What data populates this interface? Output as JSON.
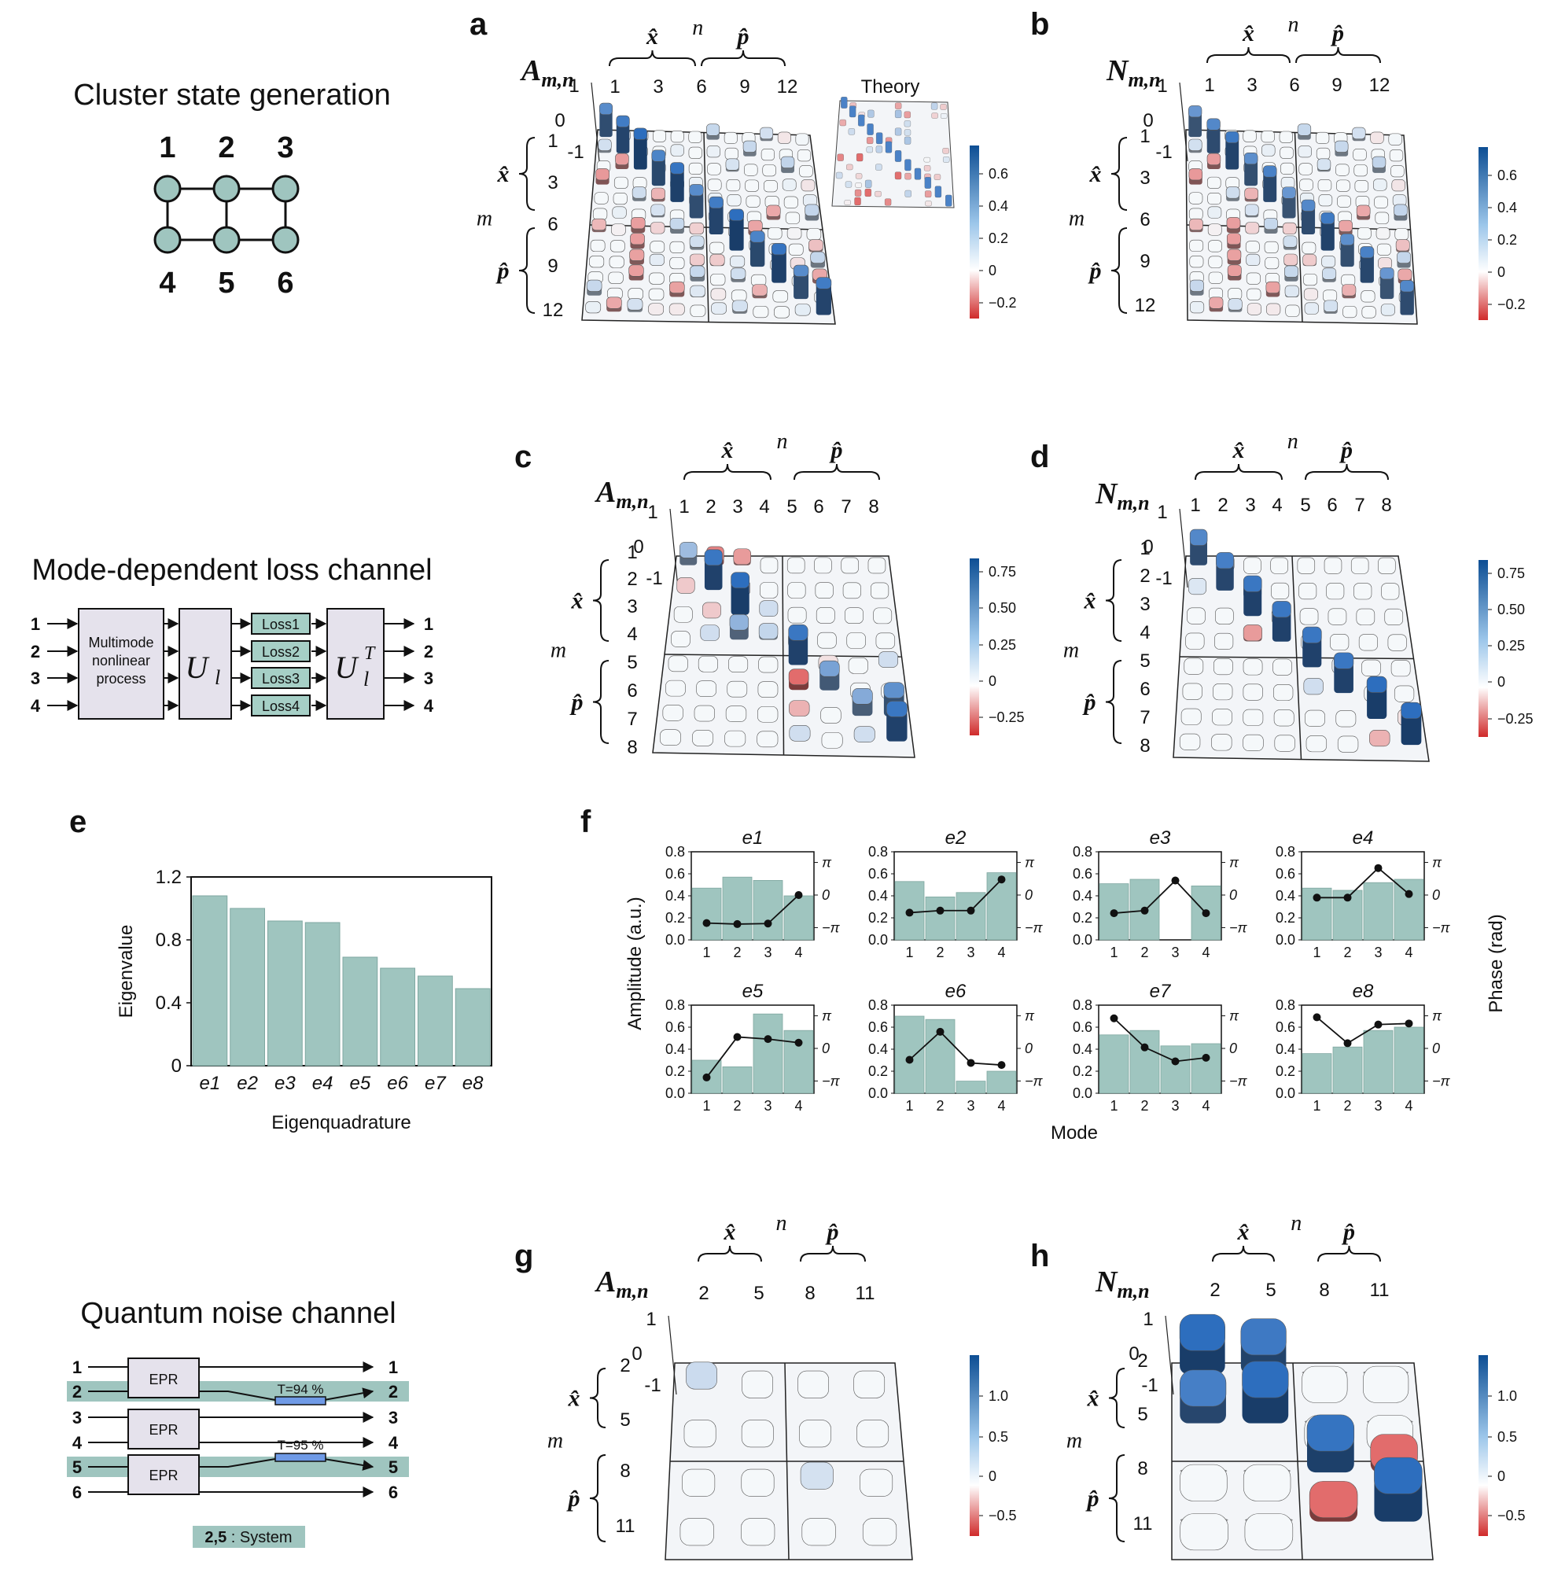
{
  "panel_labels": [
    "a",
    "b",
    "c",
    "d",
    "e",
    "f",
    "g",
    "h"
  ],
  "cluster": {
    "title": "Cluster state generation",
    "nodes": [
      "1",
      "2",
      "3",
      "4",
      "5",
      "6"
    ]
  },
  "loss": {
    "title": "Mode-dependent loss channel",
    "inputs": [
      "1",
      "2",
      "3",
      "4"
    ],
    "outputs": [
      "1",
      "2",
      "3",
      "4"
    ],
    "block1": [
      "Multimode",
      "nonlinear",
      "process"
    ],
    "ul": "U",
    "ul_sub": "l",
    "ult": "U",
    "ult_sub": "l",
    "ult_sup": "T",
    "boxes": [
      "Loss1",
      "Loss2",
      "Loss3",
      "Loss4"
    ]
  },
  "noise": {
    "title": "Quantum noise channel",
    "inputs": [
      "1",
      "2",
      "3",
      "4",
      "5",
      "6"
    ],
    "outputs": [
      "1",
      "2",
      "3",
      "4",
      "5",
      "6"
    ],
    "epr": [
      "EPR",
      "EPR",
      "EPR"
    ],
    "t1": "T=94 %",
    "t2": "T=95 %",
    "legend_bold": "2,5",
    "legend_rest": " : System"
  },
  "matrix_common": {
    "xhat": "x̂",
    "phat": "p̂",
    "n": "n",
    "m": "m",
    "a_sym": "A",
    "n_sym": "N",
    "subscript": "m,n",
    "z_ticks": [
      "1",
      "0",
      "-1"
    ],
    "theory": "Theory"
  },
  "mat_ab": {
    "col_ticks": [
      "1",
      "3",
      "6",
      "9",
      "12"
    ],
    "row_ticks": [
      "1",
      "3",
      "6",
      "9",
      "12"
    ],
    "cb_ticks": [
      "0.6",
      "0.4",
      "0.2",
      "0",
      "−0.2"
    ]
  },
  "mat_cd": {
    "col_ticks": [
      "1",
      "2",
      "3",
      "4",
      "5",
      "6",
      "7",
      "8"
    ],
    "row_ticks": [
      "1",
      "2",
      "3",
      "4",
      "5",
      "6",
      "7",
      "8"
    ],
    "cb_ticks": [
      "0.75",
      "0.50",
      "0.25",
      "0",
      "−0.25"
    ]
  },
  "mat_gh": {
    "col_ticks": [
      "2",
      "5",
      "8",
      "11"
    ],
    "row_ticks": [
      "2",
      "5",
      "8",
      "11"
    ],
    "cb_ticks": [
      "1.0",
      "0.5",
      "0",
      "−0.5"
    ]
  },
  "colors": {
    "bar": "#9fc5bf",
    "positive": "#1e5fa8",
    "negative": "#d43a3a",
    "system_band": "#9fc5bf",
    "loss_box": "#a6cfc6",
    "block_fill": "#e5e2ec",
    "node_fill": "#9fc5bf"
  },
  "chart_data": [
    {
      "type": "bar",
      "categories": [
        "e1",
        "e2",
        "e3",
        "e4",
        "e5",
        "e6",
        "e7",
        "e8"
      ],
      "values": [
        1.08,
        1.0,
        0.92,
        0.91,
        0.69,
        0.62,
        0.57,
        0.49
      ],
      "xlabel": "Eigenquadrature",
      "ylabel": "Eigenvalue",
      "ylim": [
        0,
        1.2
      ],
      "yticks": [
        "0",
        "0.4",
        "0.8",
        "1.2"
      ],
      "grid": false
    },
    {
      "type": "bar",
      "xlabel": "Mode",
      "ylabel_left": "Amplitude (a.u.)",
      "ylabel_right": "Phase (rad)",
      "ylim": [
        0,
        0.8
      ],
      "yticks": [
        "0.0",
        "0.2",
        "0.4",
        "0.6",
        "0.8"
      ],
      "phase_ticks": [
        "π",
        "0",
        "−π"
      ],
      "modes": [
        "1",
        "2",
        "3",
        "4"
      ],
      "subplots": [
        {
          "title": "e1",
          "amplitude": [
            0.47,
            0.57,
            0.54,
            0.4
          ],
          "phase": [
            -2.7,
            -2.8,
            -2.75,
            0.0
          ]
        },
        {
          "title": "e2",
          "amplitude": [
            0.53,
            0.39,
            0.43,
            0.61
          ],
          "phase": [
            -1.7,
            -1.5,
            -1.5,
            1.5
          ]
        },
        {
          "title": "e3",
          "amplitude": [
            0.51,
            0.55,
            0.0,
            0.49
          ],
          "phase": [
            -1.75,
            -1.5,
            1.4,
            -1.75
          ]
        },
        {
          "title": "e4",
          "amplitude": [
            0.47,
            0.45,
            0.52,
            0.55
          ],
          "phase": [
            -0.25,
            -0.25,
            2.6,
            0.1
          ]
        },
        {
          "title": "e5",
          "amplitude": [
            0.3,
            0.24,
            0.72,
            0.57
          ],
          "phase": [
            -2.8,
            1.1,
            0.9,
            0.55
          ]
        },
        {
          "title": "e6",
          "amplitude": [
            0.7,
            0.67,
            0.11,
            0.2
          ],
          "phase": [
            -1.1,
            1.6,
            -1.4,
            -1.6
          ]
        },
        {
          "title": "e7",
          "amplitude": [
            0.53,
            0.57,
            0.43,
            0.45
          ],
          "phase": [
            2.9,
            0.1,
            -1.25,
            -0.9
          ]
        },
        {
          "title": "e8",
          "amplitude": [
            0.36,
            0.42,
            0.57,
            0.6
          ],
          "phase": [
            3.0,
            0.5,
            2.3,
            2.4
          ]
        }
      ]
    }
  ]
}
